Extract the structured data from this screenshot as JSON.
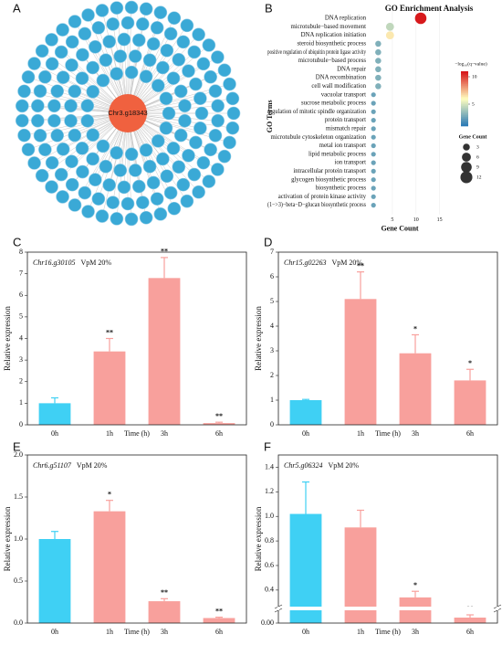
{
  "panel_labels": [
    "A",
    "B",
    "C",
    "D",
    "E",
    "F"
  ],
  "network": {
    "center": "Chr3.g18343"
  },
  "chart_data": [
    {
      "type": "dot",
      "title": "GO Enrichment Analysis",
      "y_label": "GO Terms",
      "x_label": "Gene Count",
      "categories": [
        "DNA replication",
        "microtubule−based movement",
        "DNA replication initiation",
        "steroid biosynthetic process",
        "positive regulation of ubiquitin protein ligase activity",
        "microtubule−based process",
        "DNA repair",
        "DNA recombination",
        "cell wall modification",
        "vacuolar transport",
        "sucrose metabolic process",
        "regulation of mitotic spindle organization",
        "protein transport",
        "mismatch repair",
        "microtubule cytoskeleton organization",
        "metal ion transport",
        "lipid metabolic process",
        "ion transport",
        "intracellular protein transport",
        "glycogen biosynthetic process",
        "biosynthetic process",
        "activation of protein kinase activity",
        "(1−>3)−beta−D−glucan biosynthetic process"
      ],
      "values": [
        11,
        4.5,
        4.5,
        2,
        2,
        2,
        2,
        2,
        2,
        1,
        1,
        1,
        1,
        1,
        1,
        1,
        1,
        1,
        1,
        1,
        1,
        1,
        1
      ],
      "color_values": [
        11,
        4.5,
        6.5,
        3,
        3,
        3,
        3,
        3,
        3,
        2.5,
        2.5,
        2.5,
        2.5,
        2.5,
        2.5,
        2.5,
        2.5,
        2.5,
        2.5,
        2.5,
        2.5,
        2.5,
        2.5
      ],
      "xlim": [
        0,
        17
      ],
      "xticks": [
        5,
        10,
        15
      ],
      "color_title": "−log₁₀(q−value)",
      "clim": [
        1,
        11
      ],
      "cticks": [
        5,
        10
      ],
      "size_title": "Gene Count",
      "size_ticks": [
        3,
        6,
        9,
        12
      ]
    },
    {
      "type": "bar",
      "gene": "Chr16.g30105",
      "treatment": "VpM 20%",
      "x_label": "Time (h)",
      "y_label": "Relative expression",
      "categories": [
        "0h",
        "1h",
        "3h",
        "6h"
      ],
      "values": [
        1.0,
        3.4,
        6.8,
        0.08
      ],
      "errors": [
        0.25,
        0.6,
        0.95,
        0.04
      ],
      "significance": [
        null,
        "**",
        "**",
        "**"
      ],
      "colors": [
        "#3fd0f4",
        "#f8a09c",
        "#f8a09c",
        "#f8a09c"
      ],
      "ylim": [
        0,
        8
      ],
      "yticks": [
        0,
        1,
        2,
        3,
        4,
        5,
        6,
        7,
        8
      ]
    },
    {
      "type": "bar",
      "gene": "Chr15.g02263",
      "treatment": "VpM 20%",
      "x_label": "Time (h)",
      "y_label": "Relative expression",
      "categories": [
        "0h",
        "1h",
        "3h",
        "6h"
      ],
      "values": [
        1.0,
        5.1,
        2.9,
        1.8
      ],
      "errors": [
        0.03,
        1.1,
        0.75,
        0.45
      ],
      "significance": [
        null,
        "**",
        "*",
        "*"
      ],
      "colors": [
        "#3fd0f4",
        "#f8a09c",
        "#f8a09c",
        "#f8a09c"
      ],
      "ylim": [
        0,
        7
      ],
      "yticks": [
        0,
        1,
        2,
        3,
        4,
        5,
        6,
        7
      ]
    },
    {
      "type": "bar",
      "gene": "Chr6.g51107",
      "treatment": "VpM 20%",
      "x_label": "Time (h)",
      "y_label": "Relative expression",
      "categories": [
        "0h",
        "1h",
        "3h",
        "6h"
      ],
      "values": [
        1.0,
        1.33,
        0.26,
        0.06
      ],
      "errors": [
        0.09,
        0.13,
        0.03,
        0.01
      ],
      "significance": [
        null,
        "*",
        "**",
        "**"
      ],
      "colors": [
        "#3fd0f4",
        "#f8a09c",
        "#f8a09c",
        "#f8a09c"
      ],
      "ylim": [
        0,
        2
      ],
      "yticks": [
        {
          "value": 0,
          "label": "0.0"
        },
        {
          "value": 0.5,
          "label": "0.5"
        },
        {
          "value": 1,
          "label": "1.0"
        },
        {
          "value": 1.5,
          "label": "1.5"
        },
        {
          "value": 2,
          "label": "2.0"
        }
      ]
    },
    {
      "type": "bar",
      "gene": "Chr5.g06324",
      "treatment": "VpM 20%",
      "x_label": "Time (h)",
      "y_label": "Relative expression",
      "categories": [
        "0h",
        "1h",
        "3h",
        "6h"
      ],
      "values": [
        1.02,
        0.91,
        0.34,
        0.01
      ],
      "errors": [
        0.26,
        0.14,
        0.05,
        0.005
      ],
      "significance": [
        null,
        null,
        "*",
        "**"
      ],
      "colors": [
        "#3fd0f4",
        "#f8a09c",
        "#f8a09c",
        "#f8a09c"
      ],
      "ylim": [
        0,
        1.5
      ],
      "axis_break": [
        0.02,
        0.28
      ],
      "yticks": [
        {
          "value": 0,
          "label": "0.00"
        },
        0.4,
        0.6,
        0.8,
        {
          "value": 1,
          "label": "1.0"
        },
        1.2,
        1.4
      ]
    }
  ]
}
